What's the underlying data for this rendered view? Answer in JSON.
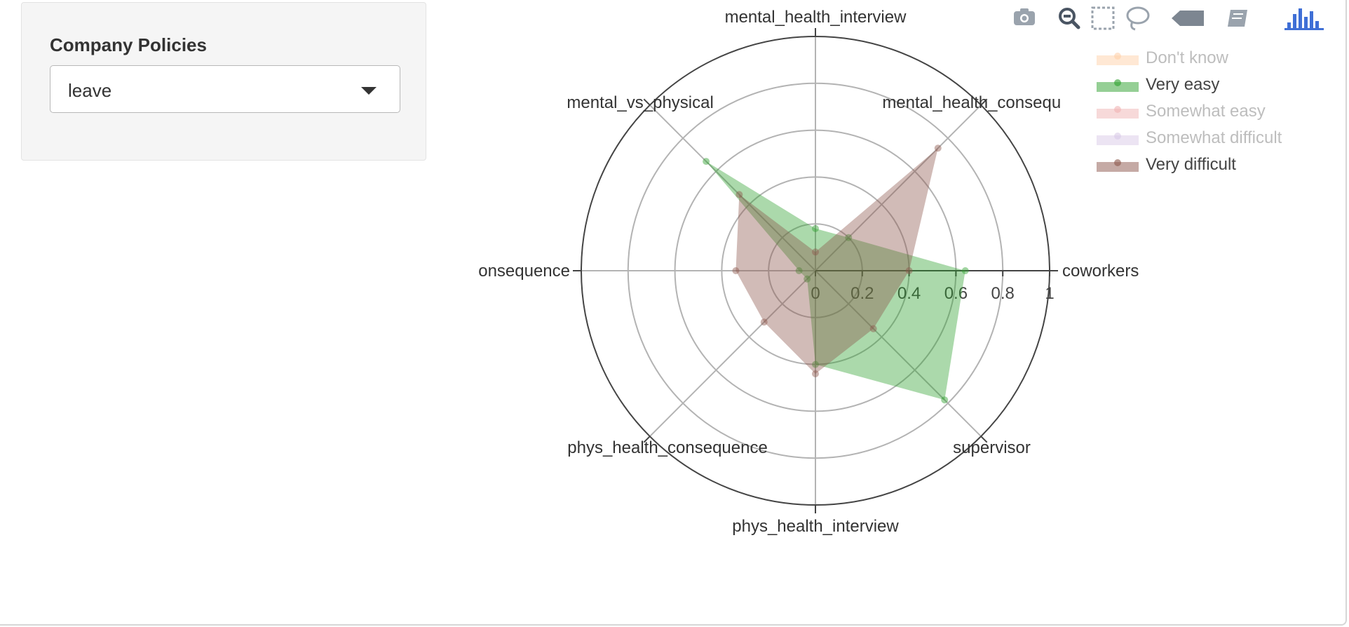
{
  "sidebar": {
    "label": "Company Policies",
    "select_value": "leave"
  },
  "modebar": {
    "buttons": [
      "camera-icon",
      "zoom-icon",
      "box-select-icon",
      "lasso-select-icon",
      "autoscale-icon",
      "book-icon",
      "plotly-logo-icon"
    ]
  },
  "legend_items": [
    {
      "name": "Don't know",
      "color": "#ff7f0e",
      "hidden": true
    },
    {
      "name": "Very easy",
      "color": "#2ca02c",
      "hidden": false
    },
    {
      "name": "Somewhat easy",
      "color": "#d62728",
      "hidden": true
    },
    {
      "name": "Somewhat difficult",
      "color": "#9467bd",
      "hidden": true
    },
    {
      "name": "Very difficult",
      "color": "#8c564b",
      "hidden": false
    }
  ],
  "chart_data": {
    "type": "radar",
    "axes": [
      "coworkers",
      "mental_health_consequence",
      "mental_health_interview",
      "mental_vs_physical",
      "consequence",
      "phys_health_consequence",
      "phys_health_interview",
      "supervisor"
    ],
    "axis_display_labels": [
      "coworkers",
      "mental_health_consequ",
      "mental_health_interview",
      "mental_vs_physical",
      "onsequence",
      "phys_health_consequence",
      "phys_health_interview",
      "supervisor"
    ],
    "radial_tick_labels": [
      "0",
      "0.2",
      "0.4",
      "0.6",
      "0.8",
      "1"
    ],
    "radial_range": [
      0,
      1
    ],
    "grid": true,
    "legend_position": "top-right",
    "series": [
      {
        "name": "Very easy",
        "color": "#2ca02c",
        "values": [
          0.64,
          0.2,
          0.18,
          0.66,
          0.07,
          0.05,
          0.4,
          0.78
        ]
      },
      {
        "name": "Very difficult",
        "color": "#8c564b",
        "values": [
          0.4,
          0.74,
          0.08,
          0.46,
          0.34,
          0.31,
          0.44,
          0.35
        ]
      }
    ]
  }
}
